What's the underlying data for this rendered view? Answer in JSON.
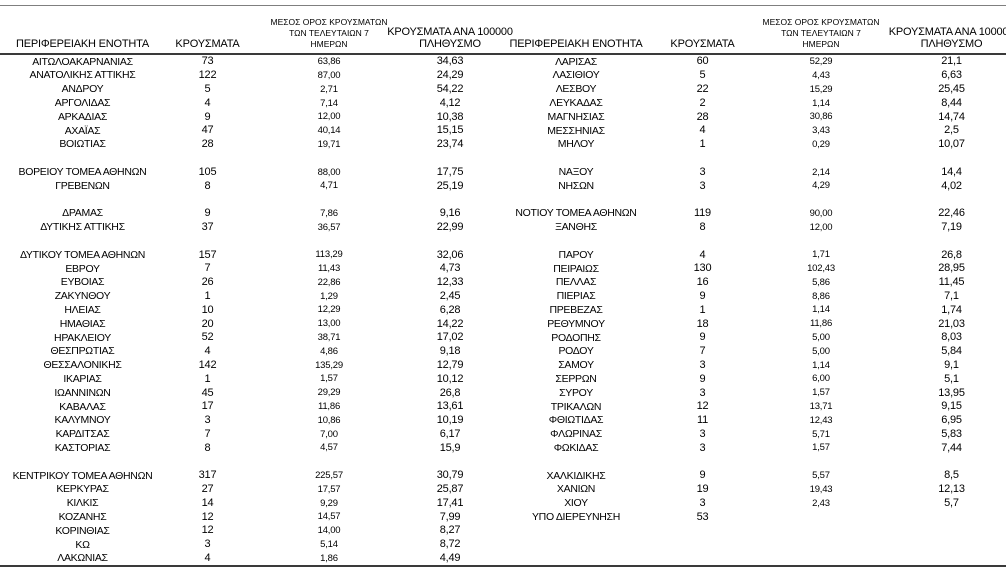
{
  "colors": {
    "background": "#ffffff",
    "text": "#000000",
    "rule_light": "#7f7f7f",
    "rule_dark": "#3a3a3a"
  },
  "table": {
    "headers": {
      "region": "ΠΕΡΙΦΕΡΕΙΑΚΗ ΕΝΟΤΗΤΑ",
      "cases": "ΚΡΟΥΣΜΑΤΑ",
      "avg7_line1": "ΜΕΣΟΣ ΟΡΟΣ ΚΡΟΥΣΜΑΤΩΝ",
      "avg7_line2": "ΤΩΝ ΤΕΛΕΥΤΑΙΩΝ 7",
      "avg7_line3": "ΗΜΕΡΩΝ",
      "per100k_line1": "ΚΡΟΥΣΜΑΤΑ ΑΝΑ 100000",
      "per100k_line2": "ΠΛΗΘΥΣΜΟ"
    },
    "rows": [
      {
        "left": [
          "ΑΙΤΩΛΟΑΚΑΡΝΑΝΙΑΣ",
          "73",
          "63,86",
          "34,63"
        ],
        "right": [
          "ΛΑΡΙΣΑΣ",
          "60",
          "52,29",
          "21,1"
        ]
      },
      {
        "left": [
          "ΑΝΑΤΟΛΙΚΗΣ ΑΤΤΙΚΗΣ",
          "122",
          "87,00",
          "24,29"
        ],
        "right": [
          "ΛΑΣΙΘΙΟΥ",
          "5",
          "4,43",
          "6,63"
        ]
      },
      {
        "left": [
          "ΑΝΔΡΟΥ",
          "5",
          "2,71",
          "54,22"
        ],
        "right": [
          "ΛΕΣΒΟΥ",
          "22",
          "15,29",
          "25,45"
        ]
      },
      {
        "left": [
          "ΑΡΓΟΛΙΔΑΣ",
          "4",
          "7,14",
          "4,12"
        ],
        "right": [
          "ΛΕΥΚΑΔΑΣ",
          "2",
          "1,14",
          "8,44"
        ]
      },
      {
        "left": [
          "ΑΡΚΑΔΙΑΣ",
          "9",
          "12,00",
          "10,38"
        ],
        "right": [
          "ΜΑΓΝΗΣΙΑΣ",
          "28",
          "30,86",
          "14,74"
        ]
      },
      {
        "left": [
          "ΑΧΑΪΑΣ",
          "47",
          "40,14",
          "15,15"
        ],
        "right": [
          "ΜΕΣΣΗΝΙΑΣ",
          "4",
          "3,43",
          "2,5"
        ]
      },
      {
        "left": [
          "ΒΟΙΩΤΙΑΣ",
          "28",
          "19,71",
          "23,74"
        ],
        "right": [
          "ΜΗΛΟΥ",
          "1",
          "0,29",
          "10,07"
        ]
      },
      {
        "left": null,
        "right": null
      },
      {
        "left": [
          "ΒΟΡΕΙΟΥ ΤΟΜΕΑ ΑΘΗΝΩΝ",
          "105",
          "88,00",
          "17,75"
        ],
        "right": [
          "ΝΑΞΟΥ",
          "3",
          "2,14",
          "14,4"
        ]
      },
      {
        "left": [
          "ΓΡΕΒΕΝΩΝ",
          "8",
          "4,71",
          "25,19"
        ],
        "right": [
          "ΝΗΣΩΝ",
          "3",
          "4,29",
          "4,02"
        ]
      },
      {
        "left": null,
        "right": null
      },
      {
        "left": [
          "ΔΡΑΜΑΣ",
          "9",
          "7,86",
          "9,16"
        ],
        "right": [
          "ΝΟΤΙΟΥ ΤΟΜΕΑ ΑΘΗΝΩΝ",
          "119",
          "90,00",
          "22,46"
        ]
      },
      {
        "left": [
          "ΔΥΤΙΚΗΣ ΑΤΤΙΚΗΣ",
          "37",
          "36,57",
          "22,99"
        ],
        "right": [
          "ΞΑΝΘΗΣ",
          "8",
          "12,00",
          "7,19"
        ]
      },
      {
        "left": null,
        "right": null
      },
      {
        "left": [
          "ΔΥΤΙΚΟΥ ΤΟΜΕΑ ΑΘΗΝΩΝ",
          "157",
          "113,29",
          "32,06"
        ],
        "right": [
          "ΠΑΡΟΥ",
          "4",
          "1,71",
          "26,8"
        ]
      },
      {
        "left": [
          "ΕΒΡΟΥ",
          "7",
          "11,43",
          "4,73"
        ],
        "right": [
          "ΠΕΙΡΑΙΩΣ",
          "130",
          "102,43",
          "28,95"
        ]
      },
      {
        "left": [
          "ΕΥΒΟΙΑΣ",
          "26",
          "22,86",
          "12,33"
        ],
        "right": [
          "ΠΕΛΛΑΣ",
          "16",
          "5,86",
          "11,45"
        ]
      },
      {
        "left": [
          "ΖΑΚΥΝΘΟΥ",
          "1",
          "1,29",
          "2,45"
        ],
        "right": [
          "ΠΙΕΡΙΑΣ",
          "9",
          "8,86",
          "7,1"
        ]
      },
      {
        "left": [
          "ΗΛΕΙΑΣ",
          "10",
          "12,29",
          "6,28"
        ],
        "right": [
          "ΠΡΕΒΕΖΑΣ",
          "1",
          "1,14",
          "1,74"
        ]
      },
      {
        "left": [
          "ΗΜΑΘΙΑΣ",
          "20",
          "13,00",
          "14,22"
        ],
        "right": [
          "ΡΕΘΥΜΝΟΥ",
          "18",
          "11,86",
          "21,03"
        ]
      },
      {
        "left": [
          "ΗΡΑΚΛΕΙΟΥ",
          "52",
          "38,71",
          "17,02"
        ],
        "right": [
          "ΡΟΔΟΠΗΣ",
          "9",
          "5,00",
          "8,03"
        ]
      },
      {
        "left": [
          "ΘΕΣΠΡΩΤΙΑΣ",
          "4",
          "4,86",
          "9,18"
        ],
        "right": [
          "ΡΟΔΟΥ",
          "7",
          "5,00",
          "5,84"
        ]
      },
      {
        "left": [
          "ΘΕΣΣΑΛΟΝΙΚΗΣ",
          "142",
          "135,29",
          "12,79"
        ],
        "right": [
          "ΣΑΜΟΥ",
          "3",
          "1,14",
          "9,1"
        ]
      },
      {
        "left": [
          "ΙΚΑΡΙΑΣ",
          "1",
          "1,57",
          "10,12"
        ],
        "right": [
          "ΣΕΡΡΩΝ",
          "9",
          "6,00",
          "5,1"
        ]
      },
      {
        "left": [
          "ΙΩΑΝΝΙΝΩΝ",
          "45",
          "29,29",
          "26,8"
        ],
        "right": [
          "ΣΥΡΟΥ",
          "3",
          "1,57",
          "13,95"
        ]
      },
      {
        "left": [
          "ΚΑΒΑΛΑΣ",
          "17",
          "11,86",
          "13,61"
        ],
        "right": [
          "ΤΡΙΚΑΛΩΝ",
          "12",
          "13,71",
          "9,15"
        ]
      },
      {
        "left": [
          "ΚΑΛΥΜΝΟΥ",
          "3",
          "10,86",
          "10,19"
        ],
        "right": [
          "ΦΘΙΩΤΙΔΑΣ",
          "11",
          "12,43",
          "6,95"
        ]
      },
      {
        "left": [
          "ΚΑΡΔΙΤΣΑΣ",
          "7",
          "7,00",
          "6,17"
        ],
        "right": [
          "ΦΛΩΡΙΝΑΣ",
          "3",
          "5,71",
          "5,83"
        ]
      },
      {
        "left": [
          "ΚΑΣΤΟΡΙΑΣ",
          "8",
          "4,57",
          "15,9"
        ],
        "right": [
          "ΦΩΚΙΔΑΣ",
          "3",
          "1,57",
          "7,44"
        ]
      },
      {
        "left": null,
        "right": null
      },
      {
        "left": [
          "ΚΕΝΤΡΙΚΟΥ ΤΟΜΕΑ ΑΘΗΝΩΝ",
          "317",
          "225,57",
          "30,79"
        ],
        "right": [
          "ΧΑΛΚΙΔΙΚΗΣ",
          "9",
          "5,57",
          "8,5"
        ]
      },
      {
        "left": [
          "ΚΕΡΚΥΡΑΣ",
          "27",
          "17,57",
          "25,87"
        ],
        "right": [
          "ΧΑΝΙΩΝ",
          "19",
          "19,43",
          "12,13"
        ]
      },
      {
        "left": [
          "ΚΙΛΚΙΣ",
          "14",
          "9,29",
          "17,41"
        ],
        "right": [
          "ΧΙΟΥ",
          "3",
          "2,43",
          "5,7"
        ]
      },
      {
        "left": [
          "ΚΟΖΑΝΗΣ",
          "12",
          "14,57",
          "7,99"
        ],
        "right": [
          "ΥΠΟ ΔΙΕΡΕΥΝΗΣΗ",
          "53",
          "",
          ""
        ]
      },
      {
        "left": [
          "ΚΟΡΙΝΘΙΑΣ",
          "12",
          "14,00",
          "8,27"
        ],
        "right": null
      },
      {
        "left": [
          "ΚΩ",
          "3",
          "5,14",
          "8,72"
        ],
        "right": null
      },
      {
        "left": [
          "ΛΑΚΩΝΙΑΣ",
          "4",
          "1,86",
          "4,49"
        ],
        "right": null
      }
    ]
  }
}
